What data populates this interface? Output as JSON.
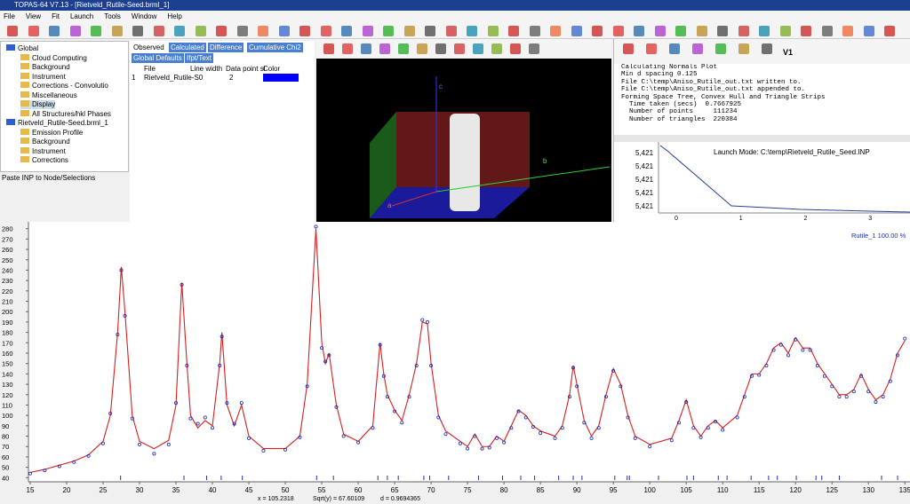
{
  "window": {
    "title": "TOPAS-64 V7.13 - [Rietveld_Rutile-Seed.brml_1]",
    "menu": [
      "File",
      "View",
      "Fit",
      "Launch",
      "Tools",
      "Window",
      "Help"
    ]
  },
  "tree": {
    "nodes": [
      {
        "label": "Global",
        "level": 0
      },
      {
        "label": "Cloud Computing",
        "level": 1
      },
      {
        "label": "Background",
        "level": 1
      },
      {
        "label": "Instrument",
        "level": 1
      },
      {
        "label": "Corrections - Convolutio",
        "level": 1
      },
      {
        "label": "Miscellaneous",
        "level": 1
      },
      {
        "label": "Display",
        "level": 1
      },
      {
        "label": "All Structures/hkl Phases",
        "level": 1
      },
      {
        "label": "Rietveld_Rutile-Seed.brml_1",
        "level": 0
      },
      {
        "label": "Emission Profile",
        "level": 1
      },
      {
        "label": "Background",
        "level": 1
      },
      {
        "label": "Instrument",
        "level": 1
      },
      {
        "label": "Corrections",
        "level": 1
      }
    ],
    "status": "Paste INP to Node/Selections"
  },
  "display": {
    "tabs": [
      "Observed",
      "Calculated",
      "Difference",
      "Cumulative Chi2"
    ],
    "buttons": [
      "Global Defaults",
      "Ifpt/Text"
    ],
    "headers": [
      "File",
      "Line width",
      "Data point si",
      "Color"
    ],
    "row": [
      "1",
      "Rietveld_Rutile-S0",
      "2"
    ]
  },
  "view3d": {
    "axes": [
      "c",
      "b",
      "a"
    ]
  },
  "right_toolbar": {
    "label": "V1"
  },
  "log": {
    "lines": [
      "Calculating Normals Plot",
      "Min d spacing 0.125",
      "File C:\\temp\\Aniso_Rutile_out.txt written to.",
      "File C:\\temp\\Aniso_Rutile_out.txt appended to.",
      "Forming Space Tree, Convex Hull and Triangle Strips",
      "  Time taken (secs)  0.7667925",
      "  Number of points     111234",
      "  Number of triangles  220384"
    ]
  },
  "mini_plot": {
    "title": "Launch Mode: C:\\temp\\Rietveld_Rutile_Seed.INP",
    "ytick_labels": [
      "5,421",
      "5,421",
      "5,421",
      "5,421",
      "5,421"
    ],
    "xlim": [
      -0.275,
      3.63
    ],
    "xticks": [
      0,
      1,
      2,
      3
    ]
  },
  "main_plot": {
    "type": "line",
    "legend": "Rutile_1  100.00 %",
    "xlim": [
      14.76,
      135.7
    ],
    "ylim": [
      36,
      284
    ],
    "xticks": [
      15,
      20,
      25,
      30,
      35,
      40,
      45,
      50,
      55,
      60,
      65,
      70,
      75,
      80,
      85,
      90,
      95,
      100,
      105,
      110,
      115,
      120,
      125,
      130,
      135
    ],
    "yticks": [
      40,
      50,
      60,
      70,
      80,
      90,
      100,
      110,
      120,
      130,
      140,
      150,
      160,
      170,
      180,
      190,
      200,
      210,
      220,
      230,
      240,
      250,
      260,
      270,
      280
    ],
    "x": [
      15,
      17,
      19,
      21,
      23,
      25,
      26,
      27,
      27.5,
      28,
      29,
      30,
      32,
      34,
      35,
      35.8,
      36.5,
      37,
      38,
      39,
      40,
      41,
      41.3,
      42,
      43,
      44,
      45,
      47,
      50,
      52,
      53,
      54.2,
      55,
      55.5,
      56,
      57,
      58,
      60,
      62,
      63,
      63.5,
      64,
      65,
      66,
      67,
      68,
      68.8,
      69.5,
      70,
      71,
      72,
      74,
      75,
      76,
      77,
      78,
      79,
      80,
      81,
      82,
      83,
      84,
      85,
      87,
      88,
      89,
      89.5,
      90,
      91,
      92,
      93,
      94,
      95,
      96,
      97,
      98,
      100,
      103,
      104,
      105,
      106,
      107,
      108,
      109,
      110,
      112,
      113,
      114,
      115,
      116,
      117,
      118,
      119,
      120,
      121,
      122,
      123,
      124,
      125,
      126,
      127,
      128,
      129,
      130,
      131,
      132,
      133,
      134,
      135
    ],
    "calculated": {
      "color": "#d42020",
      "values": [
        45,
        48,
        52,
        56,
        62,
        75,
        100,
        180,
        243,
        200,
        100,
        75,
        68,
        76,
        110,
        228,
        150,
        100,
        88,
        95,
        90,
        150,
        180,
        110,
        90,
        110,
        80,
        68,
        68,
        80,
        130,
        280,
        170,
        150,
        160,
        110,
        82,
        75,
        90,
        170,
        140,
        120,
        105,
        95,
        120,
        150,
        190,
        188,
        150,
        100,
        85,
        75,
        70,
        82,
        70,
        70,
        80,
        75,
        90,
        105,
        100,
        90,
        85,
        80,
        90,
        120,
        148,
        130,
        95,
        80,
        90,
        120,
        145,
        130,
        100,
        80,
        72,
        78,
        95,
        115,
        90,
        80,
        90,
        95,
        88,
        100,
        120,
        140,
        140,
        150,
        165,
        170,
        160,
        175,
        165,
        165,
        150,
        140,
        130,
        120,
        120,
        125,
        140,
        125,
        115,
        120,
        135,
        160,
        172
      ]
    },
    "observed": {
      "color": "#1a2fb8",
      "values": [
        44,
        47,
        51,
        55,
        61,
        73,
        102,
        178,
        240,
        196,
        97,
        72,
        63,
        72,
        112,
        226,
        148,
        97,
        92,
        98,
        88,
        148,
        176,
        112,
        92,
        112,
        78,
        66,
        67,
        79,
        128,
        282,
        165,
        152,
        158,
        108,
        80,
        74,
        88,
        168,
        138,
        118,
        104,
        93,
        118,
        148,
        192,
        190,
        148,
        98,
        82,
        73,
        68,
        80,
        68,
        69,
        78,
        74,
        88,
        104,
        98,
        89,
        83,
        78,
        88,
        118,
        146,
        128,
        93,
        78,
        88,
        118,
        143,
        128,
        98,
        78,
        70,
        76,
        93,
        113,
        88,
        79,
        88,
        94,
        86,
        98,
        118,
        138,
        139,
        148,
        163,
        168,
        158,
        173,
        163,
        163,
        148,
        138,
        128,
        118,
        118,
        123,
        138,
        123,
        113,
        118,
        133,
        158,
        174
      ]
    },
    "hkl_positions": [
      27.4,
      36.1,
      39.2,
      41.2,
      44.1,
      54.3,
      56.6,
      62.7,
      64.0,
      65.5,
      69.0,
      69.8,
      72.4,
      76.5,
      79.8,
      82.3,
      84.2,
      87.5,
      89.5,
      90.7,
      95.2,
      96.9,
      97.2,
      101.2,
      105.1,
      106.0,
      109.4,
      110.6,
      113.9,
      116.3,
      117.5,
      120.1,
      122.8,
      123.6,
      126.0,
      131.8,
      134.0
    ]
  },
  "statusbar": [
    "x = 105.2318",
    "Sqrt(y) = 67.60109",
    "d = 0.9694365"
  ]
}
